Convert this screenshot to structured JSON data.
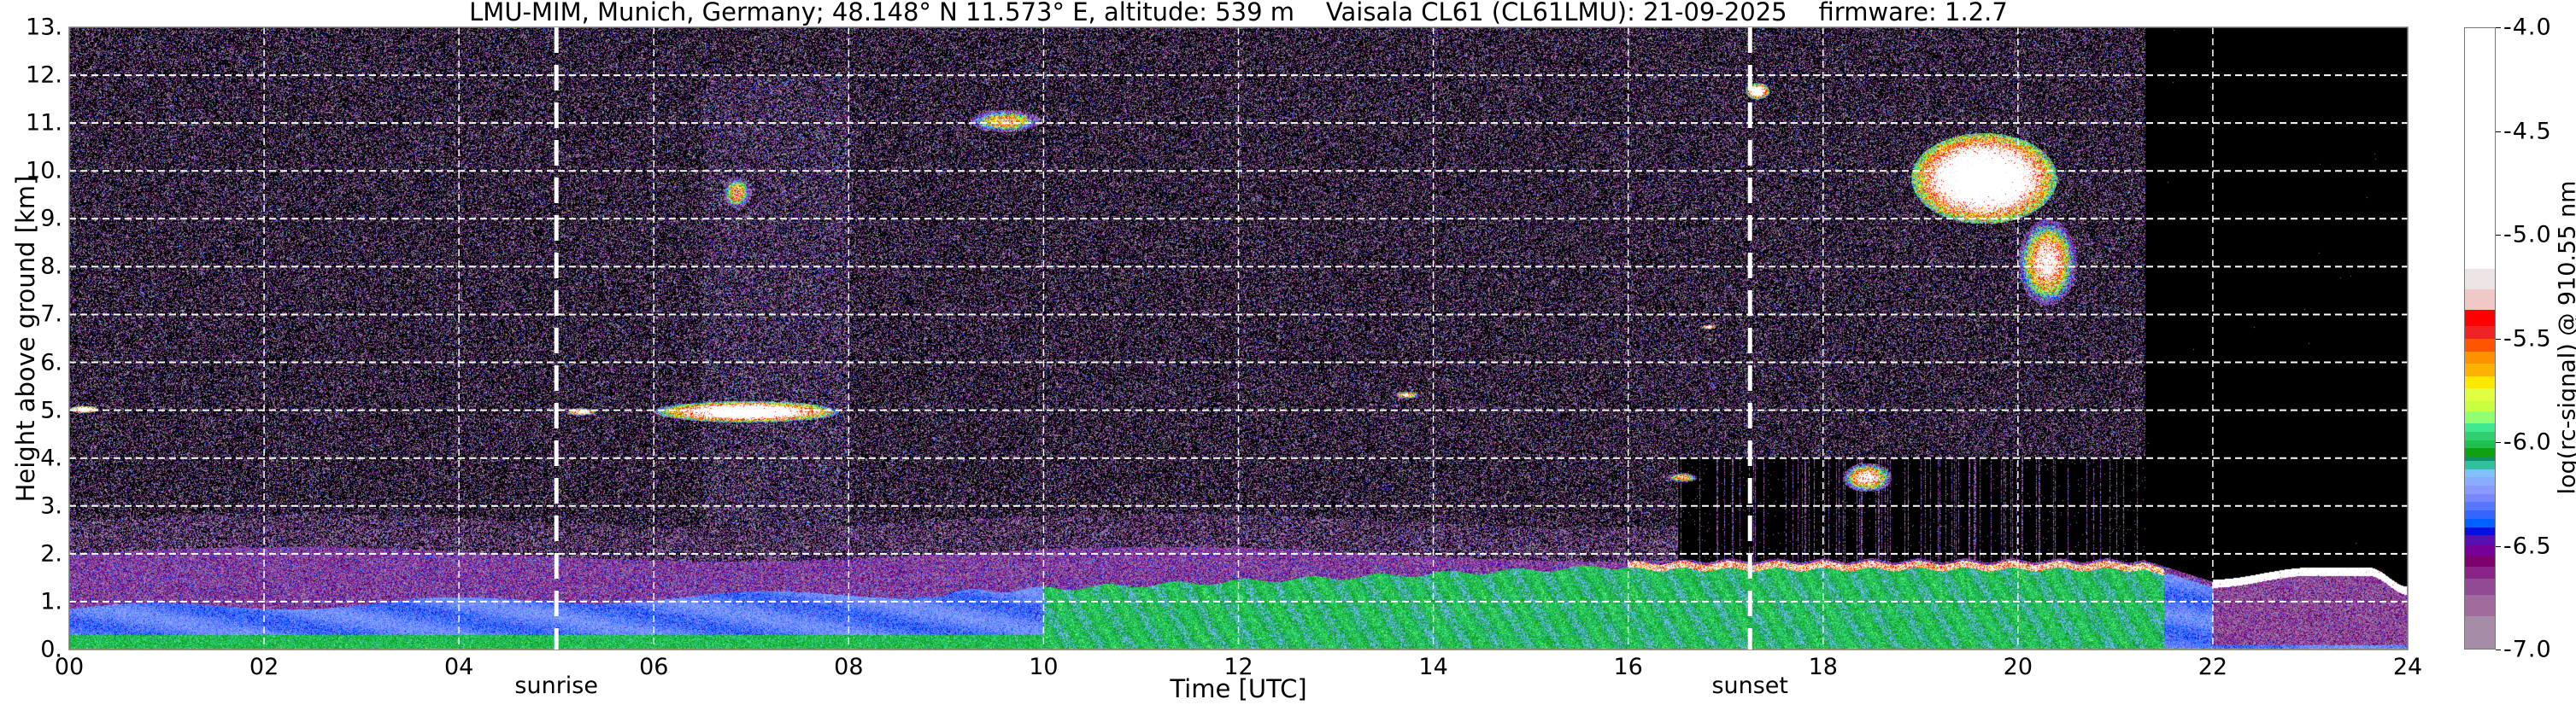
{
  "chart_data": {
    "type": "heatmap",
    "title": "LMU-MIM, Munich, Germany; 48.148° N 11.573° E, altitude: 539 m    Vaisala CL61 (CL61LMU): 21-09-2025    firmware: 1.2.7",
    "xlabel": "Time [UTC]",
    "ylabel": "Height above ground [km]",
    "xlim": [
      0,
      24
    ],
    "ylim": [
      0,
      13
    ],
    "x_ticks": [
      "00",
      "02",
      "04",
      "06",
      "08",
      "10",
      "12",
      "14",
      "16",
      "18",
      "20",
      "22",
      "24"
    ],
    "x_tick_values": [
      0,
      2,
      4,
      6,
      8,
      10,
      12,
      14,
      16,
      18,
      20,
      22,
      24
    ],
    "y_ticks": [
      "0.",
      "1.",
      "2.",
      "3.",
      "4.",
      "5.",
      "6.",
      "7.",
      "8.",
      "9.",
      "10.",
      "11.",
      "12.",
      "13."
    ],
    "y_tick_values": [
      0,
      1,
      2,
      3,
      4,
      5,
      6,
      7,
      8,
      9,
      10,
      11,
      12,
      13
    ],
    "grid": true,
    "annotations": [
      {
        "label": "sunrise",
        "x": 5.0
      },
      {
        "label": "sunset",
        "x": 17.25
      }
    ],
    "colorbar": {
      "label": "log(rc-signal) @ 910.55 nm",
      "range": [
        -7.0,
        -4.0
      ],
      "ticks": [
        "-4.0",
        "-4.5",
        "-5.0",
        "-5.5",
        "-6.0",
        "-6.5",
        "-7.0"
      ],
      "tick_values": [
        -4.0,
        -4.5,
        -5.0,
        -5.5,
        -6.0,
        -6.5,
        -7.0
      ],
      "under_color": "#000000",
      "levels": [
        {
          "from": -7.0,
          "color": "#a78ca8"
        },
        {
          "from": -6.84,
          "color": "#a06c9e"
        },
        {
          "from": -6.74,
          "color": "#934a94"
        },
        {
          "from": -6.66,
          "color": "#8a2486"
        },
        {
          "from": -6.6,
          "color": "#7e006e"
        },
        {
          "from": -6.55,
          "color": "#760098"
        },
        {
          "from": -6.5,
          "color": "#5a10b0"
        },
        {
          "from": -6.45,
          "color": "#0010e0"
        },
        {
          "from": -6.41,
          "color": "#0060ff"
        },
        {
          "from": -6.37,
          "color": "#3366ff"
        },
        {
          "from": -6.33,
          "color": "#5577ff"
        },
        {
          "from": -6.29,
          "color": "#7788ff"
        },
        {
          "from": -6.25,
          "color": "#8899ff"
        },
        {
          "from": -6.21,
          "color": "#88aaff"
        },
        {
          "from": -6.17,
          "color": "#80c0ff"
        },
        {
          "from": -6.13,
          "color": "#30c0a0"
        },
        {
          "from": -6.09,
          "color": "#109060"
        },
        {
          "from": -6.07,
          "color": "#10a010"
        },
        {
          "from": -6.03,
          "color": "#20c050"
        },
        {
          "from": -5.99,
          "color": "#30d070"
        },
        {
          "from": -5.95,
          "color": "#40e890"
        },
        {
          "from": -5.91,
          "color": "#90ff70"
        },
        {
          "from": -5.85,
          "color": "#c8ff40"
        },
        {
          "from": -5.8,
          "color": "#e0ff40"
        },
        {
          "from": -5.74,
          "color": "#ffe800"
        },
        {
          "from": -5.68,
          "color": "#ffb000"
        },
        {
          "from": -5.62,
          "color": "#ff9000"
        },
        {
          "from": -5.56,
          "color": "#ff5500"
        },
        {
          "from": -5.5,
          "color": "#ee2222"
        },
        {
          "from": -5.44,
          "color": "#ff0000"
        },
        {
          "from": -5.36,
          "color": "#f0c8c8"
        },
        {
          "from": -5.26,
          "color": "#ece4e4"
        },
        {
          "from": -5.16,
          "color": "#ffffff"
        }
      ]
    },
    "features": [
      {
        "t": [
          0.0,
          0.3
        ],
        "h": [
          4.95,
          5.1
        ],
        "value": -4.5
      },
      {
        "t": [
          5.1,
          5.4
        ],
        "h": [
          4.9,
          5.05
        ],
        "value": -4.8
      },
      {
        "t": [
          6.0,
          7.9
        ],
        "h": [
          4.75,
          5.2
        ],
        "value": -4.5
      },
      {
        "t": [
          6.7,
          7.0
        ],
        "h": [
          9.2,
          9.9
        ],
        "value": -5.3
      },
      {
        "t": [
          9.2,
          10.0
        ],
        "h": [
          10.8,
          11.3
        ],
        "value": -5.4
      },
      {
        "t": [
          13.6,
          13.85
        ],
        "h": [
          5.25,
          5.4
        ],
        "value": -5.0
      },
      {
        "t": [
          16.75,
          16.9
        ],
        "h": [
          6.7,
          6.8
        ],
        "value": -4.8
      },
      {
        "t": [
          17.2,
          17.45
        ],
        "h": [
          11.5,
          11.85
        ],
        "value": -4.6
      },
      {
        "t": [
          16.4,
          16.7
        ],
        "h": [
          3.5,
          3.7
        ],
        "value": -5.2
      },
      {
        "t": [
          18.2,
          18.7
        ],
        "h": [
          3.3,
          3.9
        ],
        "value": -5.0
      },
      {
        "t": [
          18.9,
          20.4
        ],
        "h": [
          8.9,
          10.8
        ],
        "value": -4.3
      },
      {
        "t": [
          20.0,
          20.6
        ],
        "h": [
          7.2,
          9.0
        ],
        "value": -5.0
      }
    ]
  }
}
